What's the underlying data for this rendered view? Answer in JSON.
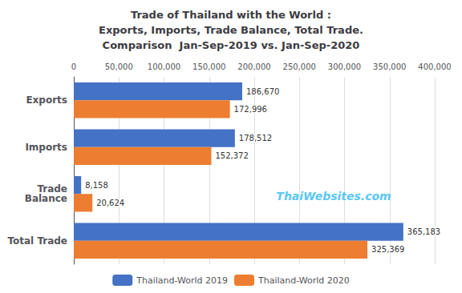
{
  "chart_data": {
    "type": "bar",
    "orientation": "horizontal",
    "title": "Trade of Thailand with the World :\nExports, Imports, Trade Balance, Total Trade.\nComparison  Jan-Sep-2019 vs. Jan-Sep-2020",
    "categories": [
      "Exports",
      "Imports",
      "Trade\nBalance",
      "Total Trade"
    ],
    "series": [
      {
        "name": "Thailand-World 2019",
        "color": "#4472C4",
        "values": [
          186670,
          178512,
          8158,
          365183
        ],
        "value_labels": [
          "186,670",
          "178,512",
          "8,158",
          "365,183"
        ]
      },
      {
        "name": "Thailand-World 2020",
        "color": "#ED7D31",
        "values": [
          172996,
          152372,
          20624,
          325369
        ],
        "value_labels": [
          "172,996",
          "152,372",
          "20,624",
          "325,369"
        ]
      }
    ],
    "xlim": [
      0,
      400000
    ],
    "xticks": [
      0,
      {
        "value": 50000,
        "label": "50,000"
      },
      {
        "value": 100000,
        "label": "100,000"
      },
      {
        "value": 150000,
        "label": "150,000"
      },
      {
        "value": 200000,
        "label": "200,000"
      },
      {
        "value": 250000,
        "label": "250,000"
      },
      {
        "value": 300000,
        "label": "300,000"
      },
      {
        "value": 350000,
        "label": "350,000"
      },
      {
        "value": 400000,
        "label": "400,000"
      }
    ],
    "data_labels": true,
    "grid": true,
    "legend": "bottom",
    "annotations": [
      {
        "text": "ThaiWebsites.com",
        "color": "#5BC8F5"
      }
    ]
  }
}
